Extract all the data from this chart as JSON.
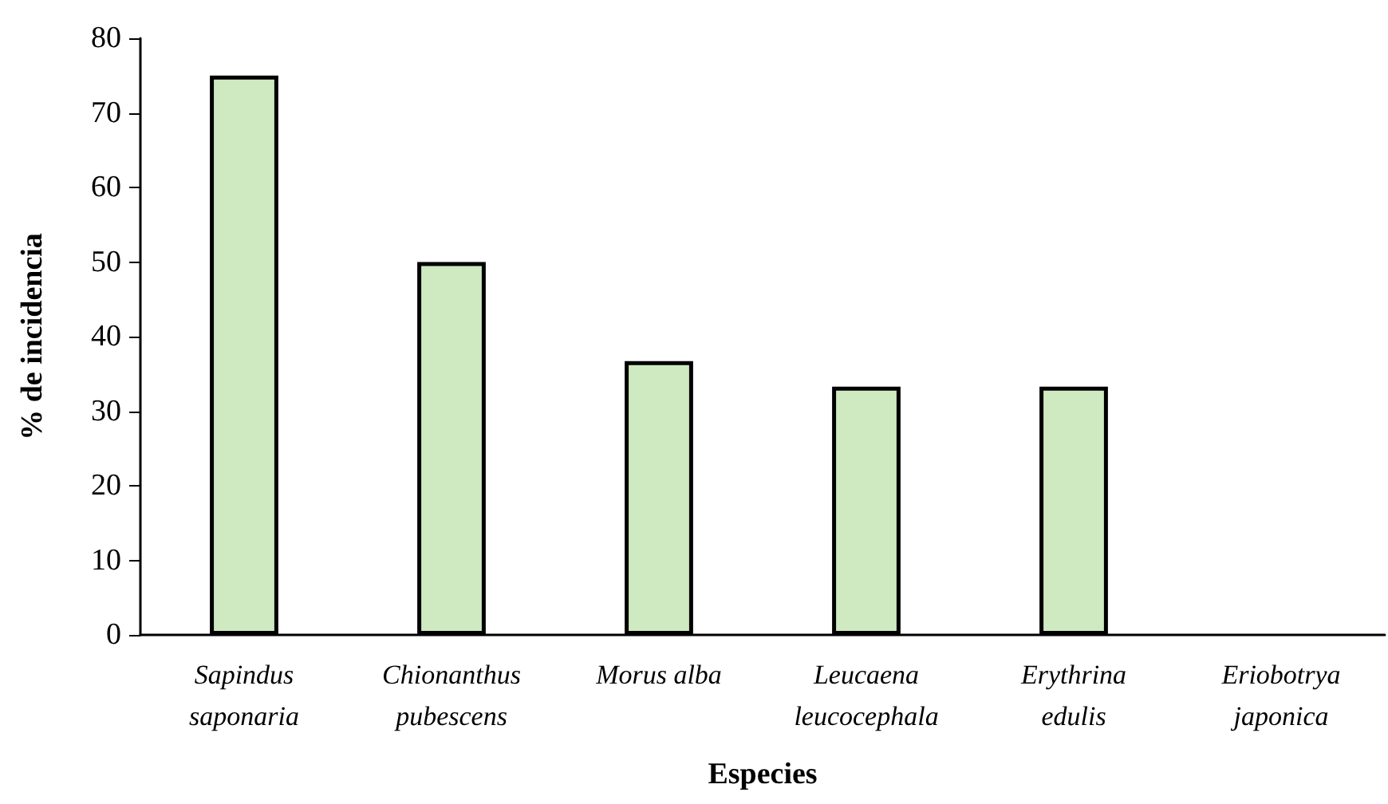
{
  "chart_data": {
    "type": "bar",
    "xlabel": "Especies",
    "ylabel": "% de incidencia",
    "categories": [
      "Sapindus\nsaponaria",
      "Chionanthus\npubescens",
      "Morus alba",
      "Leucaena\nleucocephala",
      "Erythrina\nedulis",
      "Eriobotrya\njaponica"
    ],
    "values": [
      75,
      50,
      36.7,
      33.3,
      33.3,
      0
    ],
    "color": "#cfeac0",
    "ylim": [
      0,
      80
    ],
    "yticks": [
      0,
      10,
      20,
      30,
      40,
      50,
      60,
      70,
      80
    ],
    "grid": false
  }
}
